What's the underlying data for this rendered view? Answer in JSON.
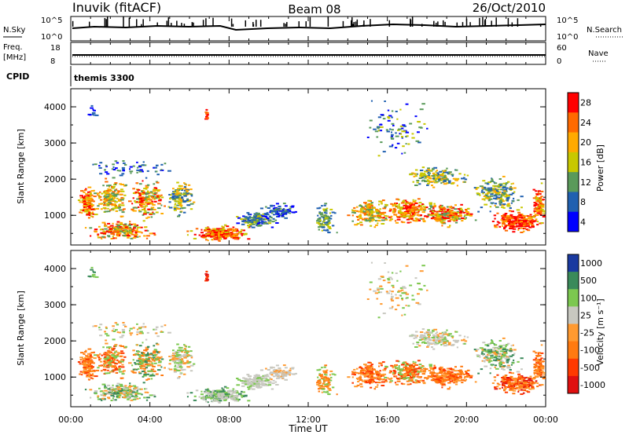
{
  "header": {
    "station": "Inuvik (fitACF)",
    "beam": "Beam 08",
    "date": "26/Oct/2010"
  },
  "top_panels": {
    "nsky_label": "N.Sky",
    "nsky_ticks": [
      "10^5",
      "10^0"
    ],
    "nsearch_label": "N.Search",
    "nsearch_ticks": [
      "10^5",
      "10^0"
    ],
    "freq_label_line1": "Freq.",
    "freq_label_line2": "[MHz]",
    "freq_ticks": [
      "18",
      "8"
    ],
    "nave_label": "Nave",
    "nave_ticks": [
      "60",
      "0"
    ],
    "cpid_label": "CPID",
    "cpid_value": "themis 3300"
  },
  "chart_data": [
    {
      "type": "heatmap",
      "title": "",
      "xlabel": "",
      "ylabel": "Slant Range [km]",
      "xlim": [
        0,
        24
      ],
      "ylim": [
        180,
        4500
      ],
      "y_ticks": [
        "4000",
        "3000",
        "2000",
        "1000"
      ],
      "colorbar": {
        "label": "Power [dB]",
        "ticks": [
          "28",
          "24",
          "20",
          "16",
          "12",
          "8",
          "4"
        ],
        "colors": [
          "#ff0000",
          "#ff6a00",
          "#ffaa00",
          "#c8c800",
          "#5a9a5a",
          "#2060b0",
          "#0000ff"
        ]
      }
    },
    {
      "type": "heatmap",
      "title": "",
      "xlabel": "Time UT",
      "ylabel": "Slant Range [km]",
      "xlim": [
        0,
        24
      ],
      "ylim": [
        180,
        4500
      ],
      "x_ticks": [
        "00:00",
        "04:00",
        "08:00",
        "12:00",
        "16:00",
        "20:00",
        "00:00"
      ],
      "y_ticks": [
        "4000",
        "3000",
        "2000",
        "1000"
      ],
      "colorbar": {
        "label": "Velocity [m s⁻¹]",
        "ticks": [
          "1000",
          "500",
          "100",
          "25",
          "-25",
          "-100",
          "-500",
          "-1000"
        ],
        "colors": [
          "#1a3aa0",
          "#3a8a5a",
          "#7cc850",
          "#c8c8c0",
          "#ff9a30",
          "#ff7a10",
          "#ff3a00",
          "#e01010"
        ]
      }
    }
  ]
}
